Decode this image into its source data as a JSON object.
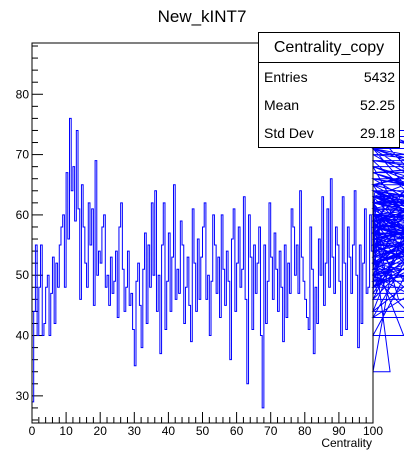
{
  "chart_data": {
    "type": "histogram",
    "title": "New_kINT7",
    "xlabel": "Centrality",
    "ylabel": "",
    "xlim": [
      0,
      100
    ],
    "ylim": [
      25.5,
      88.5
    ],
    "x_ticks": [
      0,
      10,
      20,
      30,
      40,
      50,
      60,
      70,
      80,
      90,
      100
    ],
    "y_ticks": [
      30,
      40,
      50,
      60,
      70,
      80
    ],
    "bin_width": 0.5,
    "line_color": "#0000ff",
    "values": [
      29,
      44,
      55,
      40,
      48,
      55,
      40,
      42,
      48,
      50,
      40,
      47,
      53,
      42,
      52,
      48,
      55,
      58,
      60,
      48,
      67,
      56,
      76,
      64,
      68,
      59,
      74,
      61,
      46,
      65,
      58,
      52,
      48,
      62,
      55,
      61,
      45,
      69,
      50,
      54,
      52,
      58,
      60,
      48,
      50,
      45,
      53,
      47,
      49,
      54,
      43,
      58,
      62,
      51,
      44,
      48,
      54,
      45,
      47,
      41,
      35,
      49,
      52,
      45,
      38,
      51,
      57,
      42,
      55,
      48,
      62,
      50,
      64,
      44,
      50,
      37,
      55,
      62,
      41,
      49,
      57,
      44,
      53,
      65,
      46,
      51,
      47,
      59,
      55,
      42,
      48,
      53,
      45,
      39,
      61,
      52,
      44,
      56,
      46,
      53,
      58,
      62,
      46,
      50,
      40,
      49,
      60,
      55,
      47,
      53,
      43,
      60,
      51,
      45,
      54,
      49,
      36,
      56,
      61,
      44,
      52,
      58,
      48,
      51,
      63,
      46,
      32,
      60,
      53,
      41,
      55,
      47,
      52,
      58,
      40,
      28,
      55,
      42,
      49,
      62,
      53,
      46,
      57,
      51,
      44,
      54,
      48,
      39,
      55,
      43,
      52,
      47,
      61,
      58,
      50,
      55,
      47,
      64,
      53,
      49,
      46,
      43,
      41,
      58,
      51,
      37,
      48,
      42,
      56,
      50,
      63,
      45,
      52,
      61,
      48,
      66,
      53,
      47,
      58,
      55,
      49,
      40,
      63,
      52,
      41,
      58,
      53,
      47,
      55,
      64,
      50,
      38,
      55,
      42,
      52,
      61,
      47,
      48,
      60,
      54,
      50,
      64,
      47,
      59,
      53,
      60,
      51,
      63,
      49,
      56,
      34,
      51,
      50,
      58,
      61,
      46,
      55,
      53,
      40,
      50,
      44,
      59,
      52,
      47,
      57,
      62,
      50,
      46,
      54,
      65,
      52,
      48,
      59,
      68,
      51,
      60,
      55,
      43,
      62,
      49,
      56,
      74,
      61,
      53,
      70,
      63,
      50,
      57,
      44,
      55,
      61,
      51,
      65,
      69,
      55,
      48,
      62,
      58,
      71,
      52,
      64,
      56,
      59,
      53,
      67,
      60,
      52,
      48,
      57,
      66,
      54,
      60,
      55,
      68,
      62,
      63,
      71,
      57,
      49,
      63,
      56,
      52,
      67,
      60,
      43,
      58,
      71,
      64,
      49,
      53,
      61,
      67,
      58,
      50,
      55,
      62,
      57,
      52,
      63,
      65,
      49,
      54,
      60,
      58,
      64,
      52,
      59,
      61,
      53,
      65,
      57,
      52,
      63,
      56,
      64,
      58,
      50,
      61,
      59,
      68,
      55,
      53,
      62,
      59,
      69,
      64,
      58,
      51,
      66,
      60,
      56,
      64,
      52,
      63,
      48,
      71,
      57,
      55,
      59,
      62,
      67,
      70,
      66,
      58,
      62,
      72,
      73,
      64,
      58,
      60,
      65,
      74,
      59,
      67,
      71,
      63,
      58,
      52,
      69,
      65
    ]
  },
  "stats": {
    "title": "Centrality_copy",
    "rows": [
      {
        "label": "Entries",
        "value": "5432"
      },
      {
        "label": "Mean",
        "value": "52.25"
      },
      {
        "label": "Std Dev",
        "value": "29.18"
      }
    ]
  }
}
